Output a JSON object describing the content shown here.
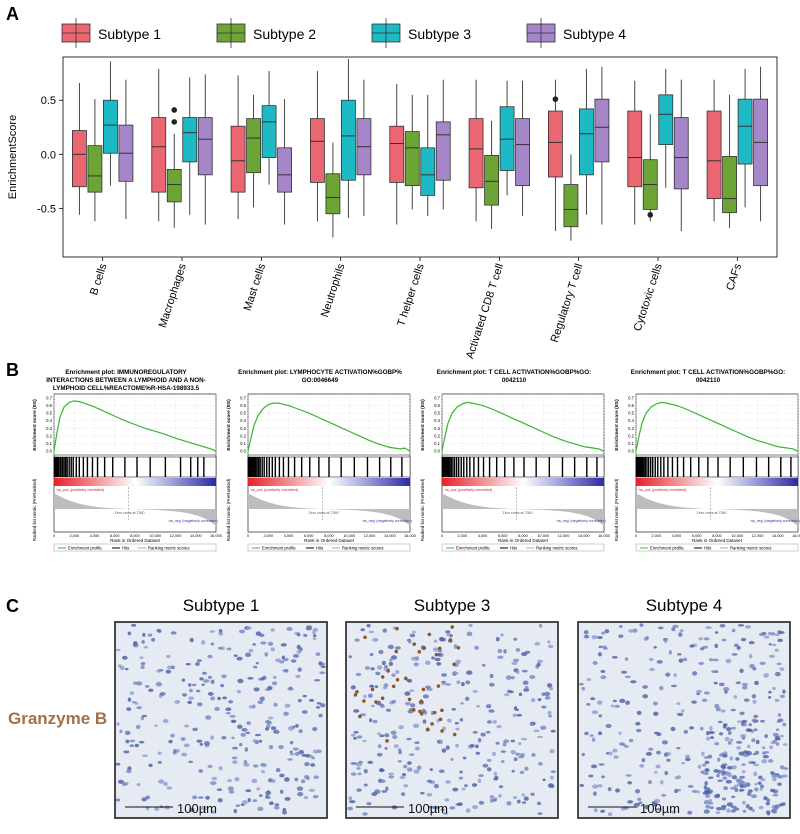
{
  "panel_labels": [
    "A",
    "B",
    "C"
  ],
  "chart_data": [
    {
      "type": "box",
      "ylabel": "EnrichmentScore",
      "ylim": [
        -0.95,
        0.9
      ],
      "yticks": [
        -0.5,
        {
          "value": 0,
          "label": "0.0"
        },
        0.5
      ],
      "categories": [
        "B cells",
        "Macrophages",
        "Mast cells",
        "Neutrophils",
        "T helper cells",
        "Activated CD8 T cell",
        "Regulatory T cell",
        "Cytotoxic cells",
        "CAFs"
      ],
      "series": [
        {
          "name": "Subtype 1",
          "color": "#ea6670",
          "values": [
            {
              "low": -0.56,
              "q1": -0.3,
              "median": 0,
              "q3": 0.22,
              "high": 0.66
            },
            {
              "low": -0.62,
              "q1": -0.35,
              "median": 0.07,
              "q3": 0.34,
              "high": 0.79
            },
            {
              "low": -0.6,
              "q1": -0.35,
              "median": -0.06,
              "q3": 0.26,
              "high": 0.73
            },
            {
              "low": -0.62,
              "q1": -0.26,
              "median": 0.12,
              "q3": 0.33,
              "high": 0.77
            },
            {
              "low": -0.65,
              "q1": -0.26,
              "median": 0.1,
              "q3": 0.26,
              "high": 0.65
            },
            {
              "low": -0.62,
              "q1": -0.31,
              "median": 0.05,
              "q3": 0.33,
              "high": 0.69
            },
            {
              "low": -0.71,
              "q1": -0.21,
              "median": 0.11,
              "q3": 0.4,
              "high": 0.69,
              "outliers": [
                0.51
              ]
            },
            {
              "low": -0.65,
              "q1": -0.3,
              "median": -0.03,
              "q3": 0.4,
              "high": 0.68
            },
            {
              "low": -0.62,
              "q1": -0.41,
              "median": -0.06,
              "q3": 0.4,
              "high": 0.69
            }
          ]
        },
        {
          "name": "Subtype 2",
          "color": "#6da436",
          "values": [
            {
              "low": -0.62,
              "q1": -0.35,
              "median": -0.2,
              "q3": 0.08,
              "high": 0.51
            },
            {
              "low": -0.68,
              "q1": -0.44,
              "median": -0.28,
              "q3": -0.14,
              "high": 0.19,
              "outliers": [
                0.41,
                0.3
              ]
            },
            {
              "low": -0.49,
              "q1": -0.17,
              "median": 0.15,
              "q3": 0.33,
              "high": 0.55
            },
            {
              "low": -0.77,
              "q1": -0.55,
              "median": -0.4,
              "q3": -0.18,
              "high": 0.11
            },
            {
              "low": -0.51,
              "q1": -0.29,
              "median": 0.06,
              "q3": 0.21,
              "high": 0.55
            },
            {
              "low": -0.69,
              "q1": -0.47,
              "median": -0.25,
              "q3": -0.01,
              "high": 0.31
            },
            {
              "low": -0.8,
              "q1": -0.67,
              "median": -0.51,
              "q3": -0.28,
              "high": 0
            },
            {
              "low": -0.62,
              "q1": -0.51,
              "median": -0.28,
              "q3": -0.05,
              "high": 0.37,
              "outliers": [
                -0.56
              ]
            },
            {
              "low": -0.68,
              "q1": -0.54,
              "median": -0.41,
              "q3": -0.02,
              "high": 0.55
            }
          ]
        },
        {
          "name": "Subtype 3",
          "color": "#1db9c4",
          "values": [
            {
              "low": -0.29,
              "q1": 0.01,
              "median": 0.27,
              "q3": 0.5,
              "high": 0.86
            },
            {
              "low": -0.56,
              "q1": -0.07,
              "median": 0.2,
              "q3": 0.34,
              "high": 0.71
            },
            {
              "low": -0.28,
              "q1": -0.03,
              "median": 0.3,
              "q3": 0.45,
              "high": 0.77
            },
            {
              "low": -0.59,
              "q1": -0.24,
              "median": 0.17,
              "q3": 0.5,
              "high": 0.88
            },
            {
              "low": -0.57,
              "q1": -0.38,
              "median": -0.19,
              "q3": 0.06,
              "high": 0.55
            },
            {
              "low": -0.38,
              "q1": -0.15,
              "median": 0.14,
              "q3": 0.44,
              "high": 0.68
            },
            {
              "low": -0.56,
              "q1": -0.19,
              "median": 0.19,
              "q3": 0.42,
              "high": 0.79
            },
            {
              "low": -0.31,
              "q1": 0.09,
              "median": 0.37,
              "q3": 0.55,
              "high": 0.79
            },
            {
              "low": -0.49,
              "q1": -0.09,
              "median": 0.26,
              "q3": 0.51,
              "high": 0.79
            }
          ]
        },
        {
          "name": "Subtype 4",
          "color": "#a586c9",
          "values": [
            {
              "low": -0.6,
              "q1": -0.25,
              "median": 0.01,
              "q3": 0.27,
              "high": 0.69
            },
            {
              "low": -0.65,
              "q1": -0.19,
              "median": 0.14,
              "q3": 0.34,
              "high": 0.74
            },
            {
              "low": -0.65,
              "q1": -0.35,
              "median": -0.19,
              "q3": 0.06,
              "high": 0.51
            },
            {
              "low": -0.57,
              "q1": -0.19,
              "median": 0.07,
              "q3": 0.33,
              "high": 0.69
            },
            {
              "low": -0.51,
              "q1": -0.24,
              "median": 0.18,
              "q3": 0.3,
              "high": 0.69
            },
            {
              "low": -0.57,
              "q1": -0.29,
              "median": 0.09,
              "q3": 0.33,
              "high": 0.68
            },
            {
              "low": -0.65,
              "q1": -0.07,
              "median": 0.25,
              "q3": 0.51,
              "high": 0.81
            },
            {
              "low": -0.71,
              "q1": -0.32,
              "median": -0.03,
              "q3": 0.34,
              "high": 0.69
            },
            {
              "low": -0.62,
              "q1": -0.29,
              "median": 0.11,
              "q3": 0.51,
              "high": 0.81
            }
          ]
        }
      ]
    },
    {
      "type": "gsea",
      "title": [
        "Enrichment plot: IMMUNOREGULATORY",
        "INTERACTIONS BETWEEN A LYMPHOID AND A NON-",
        "LYMPHOID CELL%REACTOME%R-HSA-198933.5"
      ],
      "ylabel": "Enrichment score (ES)",
      "metric_label": "Ranked list metric (PreRanked)",
      "xlabel": "Rank in Ordered Dataset",
      "annotations": [
        "'na_pos' (positively correlated)",
        "Zero cross at 7360",
        "'na_neg' (negatively correlated)"
      ],
      "xlim": [
        0,
        16000
      ],
      "xticks": [
        0,
        {
          "value": 2000,
          "label": "2,000"
        },
        {
          "value": 4000,
          "label": "4,000"
        },
        {
          "value": 6000,
          "label": "6,000"
        },
        {
          "value": 8000,
          "label": "8,000"
        },
        {
          "value": 10000,
          "label": "10,000"
        },
        {
          "value": 12000,
          "label": "12,000"
        },
        {
          "value": 14000,
          "label": "14,000"
        },
        {
          "value": 16000,
          "label": "16,000"
        }
      ],
      "ylim": [
        -0.05,
        0.75
      ],
      "yticks": [
        {
          "value": 0,
          "label": "0.0"
        },
        0.1,
        0.2,
        0.3,
        0.4,
        0.5,
        0.6,
        0.7
      ],
      "x": [
        0,
        300,
        600,
        1000,
        1500,
        2000,
        2500,
        3000,
        4000,
        5000,
        6000,
        7000,
        8000,
        9000,
        10000,
        11000,
        12000,
        13000,
        14000,
        15000,
        15500,
        16000
      ],
      "series": [
        {
          "name": "Enrichment profile",
          "color": "#3cb531",
          "values": [
            0,
            0.25,
            0.45,
            0.58,
            0.64,
            0.66,
            0.65,
            0.63,
            0.58,
            0.52,
            0.46,
            0.4,
            0.35,
            0.3,
            0.26,
            0.22,
            0.17,
            0.13,
            0.09,
            0.05,
            0.03,
            0
          ]
        }
      ],
      "hits": {
        "name": "Hits",
        "values": [
          50,
          120,
          200,
          300,
          380,
          450,
          600,
          700,
          850,
          1000,
          1150,
          1300,
          1500,
          1700,
          1900,
          2200,
          2500,
          2900,
          3300,
          3800,
          4300,
          5000,
          5800,
          7000,
          8200,
          9500,
          11000,
          12500,
          13500,
          14200,
          14800
        ]
      },
      "metric_name": "Ranking metric scores"
    },
    {
      "type": "gsea",
      "title": [
        "Enrichment plot: LYMPHOCYTE ACTIVATION%GOBP%",
        "GO:0046649"
      ],
      "ylabel": "Enrichment score (ES)",
      "metric_label": "Ranked list metric (PreRanked)",
      "xlabel": "Rank in Ordered Dataset",
      "annotations": [
        "'na_pos' (positively correlated)",
        "Zero cross at 7360",
        "'na_neg' (negatively correlated)"
      ],
      "xlim": [
        0,
        16000
      ],
      "xticks": [
        0,
        {
          "value": 2000,
          "label": "2,000"
        },
        {
          "value": 4000,
          "label": "4,000"
        },
        {
          "value": 6000,
          "label": "6,000"
        },
        {
          "value": 8000,
          "label": "8,000"
        },
        {
          "value": 10000,
          "label": "10,000"
        },
        {
          "value": 12000,
          "label": "12,000"
        },
        {
          "value": 14000,
          "label": "14,000"
        },
        {
          "value": 16000,
          "label": "16,000"
        }
      ],
      "ylim": [
        -0.05,
        0.75
      ],
      "yticks": [
        {
          "value": 0,
          "label": "0.0"
        },
        0.1,
        0.2,
        0.3,
        0.4,
        0.5,
        0.6,
        0.7
      ],
      "x": [
        0,
        300,
        600,
        1000,
        1500,
        2000,
        2500,
        3000,
        4000,
        5000,
        6000,
        7000,
        8000,
        9000,
        10000,
        11000,
        12000,
        13000,
        14000,
        15000,
        15500,
        16000
      ],
      "series": [
        {
          "name": "Enrichment profile",
          "color": "#3cb531",
          "values": [
            0,
            0.18,
            0.34,
            0.47,
            0.56,
            0.61,
            0.63,
            0.63,
            0.6,
            0.55,
            0.5,
            0.44,
            0.38,
            0.32,
            0.26,
            0.2,
            0.14,
            0.09,
            0.05,
            0.03,
            0.04,
            0
          ]
        }
      ],
      "hits": {
        "name": "Hits",
        "values": [
          30,
          100,
          180,
          260,
          340,
          420,
          520,
          640,
          760,
          900,
          1050,
          1200,
          1400,
          1600,
          1850,
          2100,
          2400,
          2700,
          3100,
          3500,
          4000,
          4600,
          5300,
          6100,
          7000,
          8000,
          9200,
          10500,
          11800,
          13000,
          14100,
          15200
        ]
      },
      "metric_name": "Ranking metric scores"
    },
    {
      "type": "gsea",
      "title": [
        "Enrichment plot: T CELL ACTIVATION%GOBP%GO:",
        "0042110"
      ],
      "ylabel": "Enrichment score (ES)",
      "metric_label": "Ranked list metric (PreRanked)",
      "xlabel": "Rank in Ordered Dataset",
      "annotations": [
        "'na_pos' (positively correlated)",
        "Zero cross at 7360",
        "'na_neg' (negatively correlated)"
      ],
      "xlim": [
        0,
        16000
      ],
      "xticks": [
        0,
        {
          "value": 2000,
          "label": "2,000"
        },
        {
          "value": 4000,
          "label": "4,000"
        },
        {
          "value": 6000,
          "label": "6,000"
        },
        {
          "value": 8000,
          "label": "8,000"
        },
        {
          "value": 10000,
          "label": "10,000"
        },
        {
          "value": 12000,
          "label": "12,000"
        },
        {
          "value": 14000,
          "label": "14,000"
        },
        {
          "value": 16000,
          "label": "16,000"
        }
      ],
      "ylim": [
        -0.05,
        0.75
      ],
      "yticks": [
        {
          "value": 0,
          "label": "0.0"
        },
        0.1,
        0.2,
        0.3,
        0.4,
        0.5,
        0.6,
        0.7
      ],
      "x": [
        0,
        300,
        600,
        1000,
        1500,
        2000,
        2500,
        3000,
        4000,
        5000,
        6000,
        7000,
        8000,
        9000,
        10000,
        11000,
        12000,
        13000,
        14000,
        15000,
        15500,
        16000
      ],
      "series": [
        {
          "name": "Enrichment profile",
          "color": "#3cb531",
          "values": [
            0,
            0.2,
            0.37,
            0.5,
            0.58,
            0.62,
            0.64,
            0.63,
            0.6,
            0.55,
            0.49,
            0.43,
            0.37,
            0.31,
            0.25,
            0.19,
            0.14,
            0.1,
            0.06,
            0.04,
            0.03,
            0
          ]
        }
      ],
      "hits": {
        "name": "Hits",
        "values": [
          40,
          110,
          190,
          270,
          350,
          440,
          540,
          660,
          780,
          920,
          1080,
          1250,
          1450,
          1650,
          1900,
          2150,
          2450,
          2750,
          3150,
          3600,
          4100,
          4700,
          5400,
          6200,
          7100,
          8100,
          9300,
          10600,
          11900,
          13100,
          14300,
          15300
        ]
      },
      "metric_name": "Ranking metric scores"
    },
    {
      "type": "gsea",
      "title": [
        "Enrichment plot: T CELL ACTIVATION%GOBP%GO:",
        "0042110"
      ],
      "ylabel": "Enrichment score (ES)",
      "metric_label": "Ranked list metric (PreRanked)",
      "xlabel": "Rank in Ordered Dataset",
      "annotations": [
        "'na_pos' (positively correlated)",
        "Zero cross at 7360",
        "'na_neg' (negatively correlated)"
      ],
      "xlim": [
        0,
        16000
      ],
      "xticks": [
        0,
        {
          "value": 2000,
          "label": "2,000"
        },
        {
          "value": 4000,
          "label": "4,000"
        },
        {
          "value": 6000,
          "label": "6,000"
        },
        {
          "value": 8000,
          "label": "8,000"
        },
        {
          "value": 10000,
          "label": "10,000"
        },
        {
          "value": 12000,
          "label": "12,000"
        },
        {
          "value": 14000,
          "label": "14,000"
        },
        {
          "value": 16000,
          "label": "16,000"
        }
      ],
      "ylim": [
        -0.05,
        0.75
      ],
      "yticks": [
        {
          "value": 0,
          "label": "0.0"
        },
        0.1,
        0.2,
        0.3,
        0.4,
        0.5,
        0.6,
        0.7
      ],
      "x": [
        0,
        300,
        600,
        1000,
        1500,
        2000,
        2500,
        3000,
        4000,
        5000,
        6000,
        7000,
        8000,
        9000,
        10000,
        11000,
        12000,
        13000,
        14000,
        15000,
        15500,
        16000
      ],
      "series": [
        {
          "name": "Enrichment profile",
          "color": "#3cb531",
          "values": [
            0,
            0.2,
            0.37,
            0.5,
            0.58,
            0.62,
            0.64,
            0.63,
            0.6,
            0.55,
            0.49,
            0.43,
            0.37,
            0.31,
            0.25,
            0.19,
            0.14,
            0.1,
            0.06,
            0.04,
            0.03,
            0
          ]
        }
      ],
      "hits": {
        "name": "Hits",
        "values": [
          40,
          110,
          190,
          270,
          350,
          440,
          540,
          660,
          780,
          920,
          1080,
          1250,
          1450,
          1650,
          1900,
          2150,
          2450,
          2750,
          3150,
          3600,
          4100,
          4700,
          5400,
          6200,
          7100,
          8100,
          9300,
          10600,
          11900,
          13100,
          14300,
          15300
        ]
      },
      "metric_name": "Ranking metric scores"
    }
  ],
  "histology": {
    "stain": "Granzyme B",
    "panels": [
      {
        "title": "Subtype 1",
        "scale": "100µm"
      },
      {
        "title": "Subtype 3",
        "scale": "100µm"
      },
      {
        "title": "Subtype 4",
        "scale": "100µm"
      }
    ]
  }
}
